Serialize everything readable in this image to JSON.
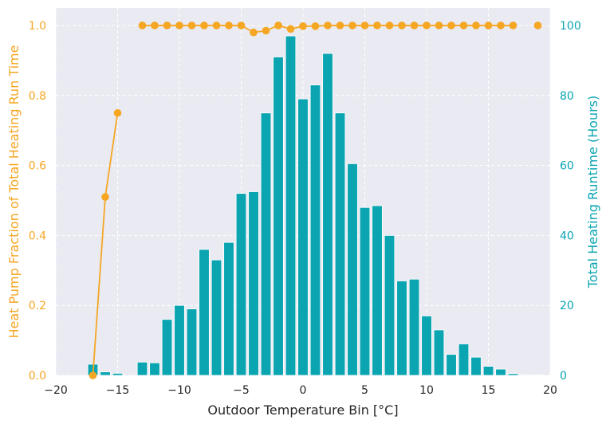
{
  "colors": {
    "background": "#eaeaf2",
    "grid": "#ffffff",
    "bar": "#0aa5b1",
    "line": "#f5a623",
    "left_axis_text": "#f5a623",
    "right_axis_text": "#0aa5b1",
    "tick_text": "#262626"
  },
  "chart_data": {
    "type": "bar+line",
    "xlabel": "Outdoor Temperature Bin [°C]",
    "ylabel_left": "Heat Pump Fraction of Total Heating Run Time",
    "ylabel_right": "Total Heating Runtime (Hours)",
    "xlim": [
      -20,
      20
    ],
    "ylim_left": [
      0,
      1.05
    ],
    "ylim_right": [
      0,
      105
    ],
    "x_ticks": [
      -20,
      -15,
      -10,
      -5,
      0,
      5,
      10,
      15,
      20
    ],
    "x_tick_labels": [
      "−20",
      "−15",
      "−10",
      "−5",
      "0",
      "5",
      "10",
      "15",
      "20"
    ],
    "y_left_ticks": [
      0,
      0.2,
      0.4,
      0.6,
      0.8,
      1.0
    ],
    "y_left_tick_labels": [
      "0.0",
      "0.2",
      "0.4",
      "0.6",
      "0.8",
      "1.0"
    ],
    "y_right_ticks": [
      0,
      20,
      40,
      60,
      80,
      100
    ],
    "y_right_tick_labels": [
      "0",
      "20",
      "40",
      "60",
      "80",
      "100"
    ],
    "grid": true,
    "grid_style": "dashed",
    "bars": {
      "axis": "right",
      "x": [
        -17,
        -16,
        -15,
        -13,
        -12,
        -11,
        -10,
        -9,
        -8,
        -7,
        -6,
        -5,
        -4,
        -3,
        -2,
        -1,
        0,
        1,
        2,
        3,
        4,
        5,
        6,
        7,
        8,
        9,
        10,
        11,
        12,
        13,
        14,
        15,
        16,
        17,
        18,
        19
      ],
      "values": [
        3.2,
        1.0,
        0.6,
        3.8,
        3.6,
        16,
        20,
        19,
        36,
        33,
        38,
        52,
        52.5,
        75,
        91,
        97,
        79,
        83,
        92,
        75,
        60.5,
        48,
        48.5,
        40,
        27,
        27.5,
        17,
        13,
        6,
        9,
        5.2,
        2.6,
        1.8,
        0.5,
        0.2,
        0.1
      ]
    },
    "lines": [
      {
        "axis": "left",
        "x": [
          -17,
          -16,
          -15
        ],
        "values": [
          0.0,
          0.51,
          0.75
        ]
      },
      {
        "axis": "left",
        "x": [
          -13,
          -12,
          -11,
          -10,
          -9,
          -8,
          -7,
          -6,
          -5,
          -4,
          -3,
          -2,
          -1,
          0,
          1,
          2,
          3,
          4,
          5,
          6,
          7,
          8,
          9,
          10,
          11,
          12,
          13,
          14,
          15,
          16,
          17
        ],
        "values": [
          1.0,
          1.0,
          1.0,
          1.0,
          1.0,
          1.0,
          1.0,
          1.0,
          1.0,
          0.98,
          0.985,
          1.0,
          0.99,
          0.998,
          0.998,
          1.0,
          1.0,
          1.0,
          1.0,
          1.0,
          1.0,
          1.0,
          1.0,
          1.0,
          1.0,
          1.0,
          1.0,
          1.0,
          1.0,
          1.0,
          1.0
        ]
      },
      {
        "axis": "left",
        "x": [
          19
        ],
        "values": [
          1.0
        ]
      }
    ]
  }
}
